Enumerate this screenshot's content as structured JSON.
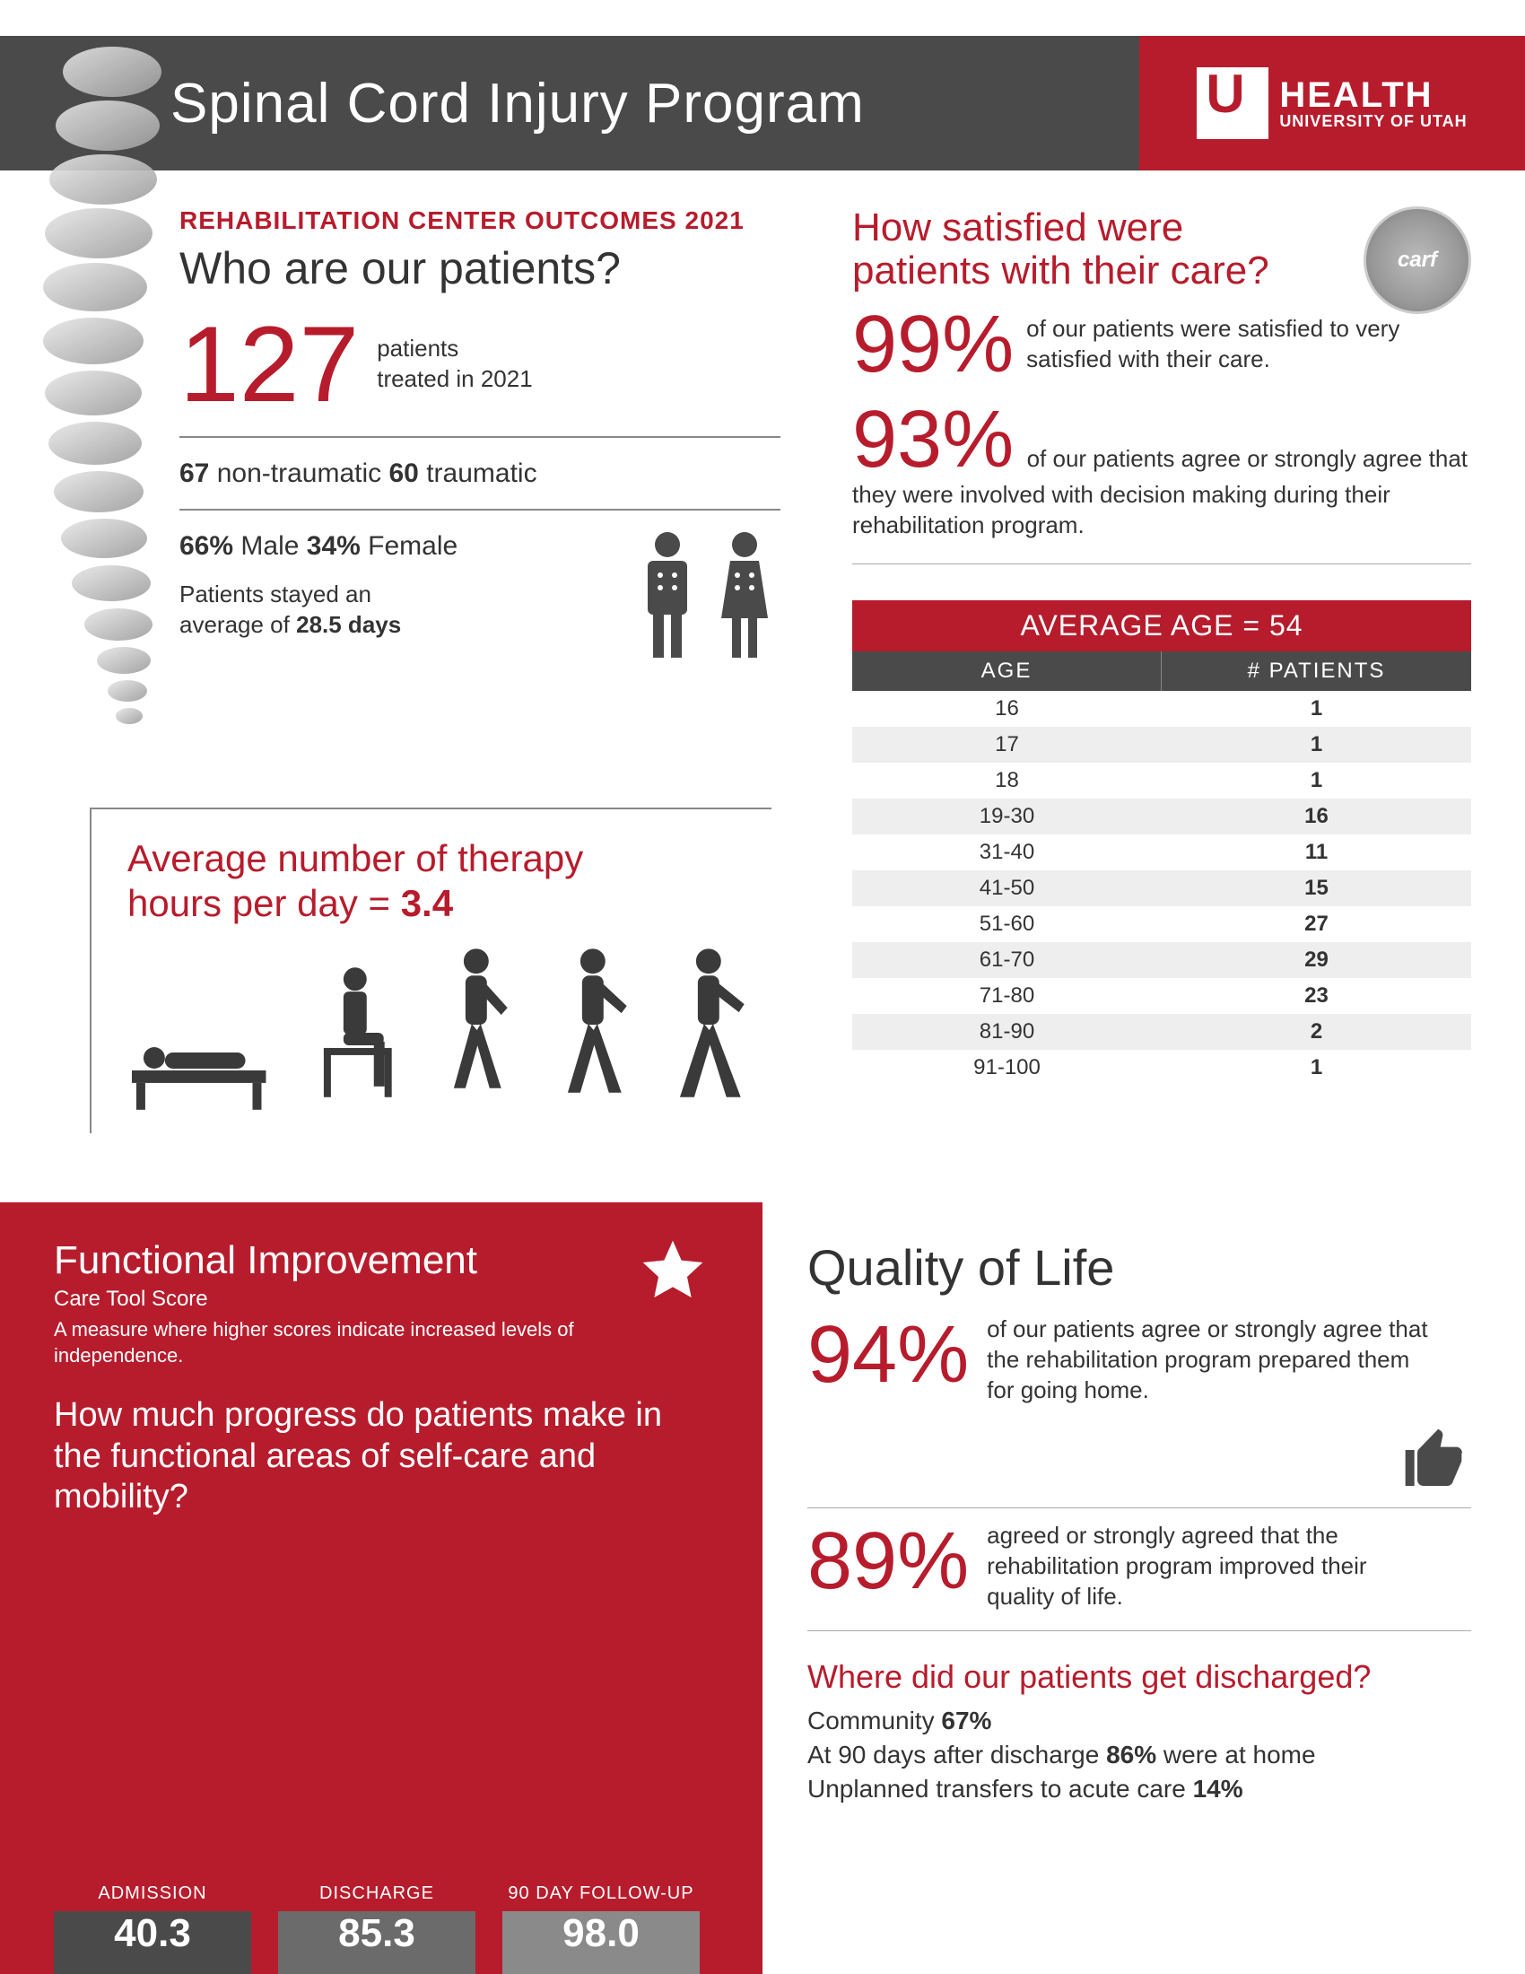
{
  "header": {
    "title": "Spinal Cord Injury Program",
    "brand_top": "HEALTH",
    "brand_bottom": "UNIVERSITY OF UTAH",
    "gray": "#4a4a4a",
    "red": "#b71c2c"
  },
  "left": {
    "subhead": "REHABILITATION CENTER OUTCOMES 2021",
    "who_title": "Who are our patients?",
    "patients_count": "127",
    "patients_label_1": "patients",
    "patients_label_2": "treated in 2021",
    "nontraumatic_count": "67",
    "nontraumatic_label": "non-traumatic",
    "traumatic_count": "60",
    "traumatic_label": "traumatic",
    "male_pct": "66%",
    "male_label": "Male",
    "female_pct": "34%",
    "female_label": "Female",
    "stay_prefix": "Patients stayed an",
    "stay_line2": "average of",
    "stay_days": "28.5 days"
  },
  "satisfaction": {
    "title_1": "How satisfied were",
    "title_2": "patients with their care?",
    "badge_text": "carf",
    "p99": "99%",
    "p99_text": "of our patients were satisfied to very satisfied with their care.",
    "p93": "93%",
    "p93_text": "of our patients agree or strongly agree that they were involved with decision making during their rehabilitation program."
  },
  "age_table": {
    "header": "AVERAGE AGE = 54",
    "col1": "AGE",
    "col2": "# PATIENTS",
    "rows": [
      {
        "age": "16",
        "n": "1"
      },
      {
        "age": "17",
        "n": "1"
      },
      {
        "age": "18",
        "n": "1"
      },
      {
        "age": "19-30",
        "n": "16"
      },
      {
        "age": "31-40",
        "n": "11"
      },
      {
        "age": "41-50",
        "n": "15"
      },
      {
        "age": "51-60",
        "n": "27"
      },
      {
        "age": "61-70",
        "n": "29"
      },
      {
        "age": "71-80",
        "n": "23"
      },
      {
        "age": "81-90",
        "n": "2"
      },
      {
        "age": "91-100",
        "n": "1"
      }
    ],
    "row_color_odd": "#ffffff",
    "row_color_even": "#eeeeee"
  },
  "therapy": {
    "line1": "Average number of therapy",
    "line2_prefix": "hours per day = ",
    "value": "3.4"
  },
  "functional": {
    "title": "Functional Improvement",
    "sub": "Care Tool Score",
    "desc": "A measure where higher scores indicate increased levels of independence.",
    "question": "How much progress do patients make in the functional areas of self-care and mobility?",
    "chart": {
      "type": "bar",
      "ylim": [
        0,
        100
      ],
      "bars": [
        {
          "label": "ADMISSION",
          "value": 40.3,
          "color": "#4a4a4a",
          "height_pct": 41
        },
        {
          "label": "DISCHARGE",
          "value": 85.3,
          "color": "#6b6b6b",
          "height_pct": 80
        },
        {
          "label": "90 DAY FOLLOW-UP",
          "value": 98.0,
          "color": "#8a8a8a",
          "height_pct": 95
        }
      ],
      "value_text_color": "#ffffff",
      "label_fontsize": 20,
      "value_fontsize": 44
    }
  },
  "qol": {
    "title": "Quality of Life",
    "p94": "94%",
    "p94_text": "of our patients agree or strongly agree that the rehabilitation program prepared them for going home.",
    "p89": "89%",
    "p89_text": "agreed or strongly agreed that the rehabilitation program improved their quality of life.",
    "discharge_title": "Where did our patients get discharged?",
    "d1_label": "Community",
    "d1_val": "67%",
    "d2_prefix": "At 90 days after discharge",
    "d2_val": "86%",
    "d2_suffix": "were at home",
    "d3_label": "Unplanned transfers to acute care",
    "d3_val": "14%"
  }
}
